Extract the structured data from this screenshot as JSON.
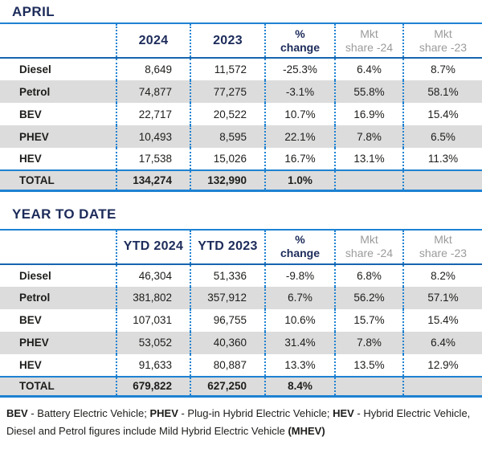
{
  "colors": {
    "navy_text": "#1c2b5a",
    "blue_line": "#1e82d2",
    "header_rule": "#1565af",
    "stripe_gray": "#dcdcdc",
    "muted_header_gray": "#9b9b9b",
    "body_text": "#1d1d1b"
  },
  "april": {
    "title": "APRIL",
    "header": {
      "col_a": "2024",
      "col_b": "2023",
      "change": [
        "%",
        "change"
      ],
      "mkt24": [
        "Mkt",
        "share -24"
      ],
      "mkt23": [
        "Mkt",
        "share -23"
      ]
    },
    "rows": [
      {
        "label": "Diesel",
        "a": "8,649",
        "b": "11,572",
        "change": "-25.3%",
        "mkt24": "6.4%",
        "mkt23": "8.7%"
      },
      {
        "label": "Petrol",
        "a": "74,877",
        "b": "77,275",
        "change": "-3.1%",
        "mkt24": "55.8%",
        "mkt23": "58.1%"
      },
      {
        "label": "BEV",
        "a": "22,717",
        "b": "20,522",
        "change": "10.7%",
        "mkt24": "16.9%",
        "mkt23": "15.4%"
      },
      {
        "label": "PHEV",
        "a": "10,493",
        "b": "8,595",
        "change": "22.1%",
        "mkt24": "7.8%",
        "mkt23": "6.5%"
      },
      {
        "label": "HEV",
        "a": "17,538",
        "b": "15,026",
        "change": "16.7%",
        "mkt24": "13.1%",
        "mkt23": "11.3%"
      }
    ],
    "total": {
      "label": "TOTAL",
      "a": "134,274",
      "b": "132,990",
      "change": "1.0%",
      "mkt24": "",
      "mkt23": ""
    }
  },
  "ytd": {
    "title": "YEAR TO DATE",
    "header": {
      "col_a": "YTD 2024",
      "col_b": "YTD 2023",
      "change": [
        "%",
        "change"
      ],
      "mkt24": [
        "Mkt",
        "share -24"
      ],
      "mkt23": [
        "Mkt",
        "share -23"
      ]
    },
    "rows": [
      {
        "label": "Diesel",
        "a": "46,304",
        "b": "51,336",
        "change": "-9.8%",
        "mkt24": "6.8%",
        "mkt23": "8.2%"
      },
      {
        "label": "Petrol",
        "a": "381,802",
        "b": "357,912",
        "change": "6.7%",
        "mkt24": "56.2%",
        "mkt23": "57.1%"
      },
      {
        "label": "BEV",
        "a": "107,031",
        "b": "96,755",
        "change": "10.6%",
        "mkt24": "15.7%",
        "mkt23": "15.4%"
      },
      {
        "label": "PHEV",
        "a": "53,052",
        "b": "40,360",
        "change": "31.4%",
        "mkt24": "7.8%",
        "mkt23": "6.4%"
      },
      {
        "label": "HEV",
        "a": "91,633",
        "b": "80,887",
        "change": "13.3%",
        "mkt24": "13.5%",
        "mkt23": "12.9%"
      }
    ],
    "total": {
      "label": "TOTAL",
      "a": "679,822",
      "b": "627,250",
      "change": "8.4%",
      "mkt24": "",
      "mkt23": ""
    }
  },
  "footnote": {
    "bev": "BEV",
    "bev_desc": " - Battery Electric Vehicle; ",
    "phev": "PHEV",
    "phev_desc": " - Plug-in Hybrid Electric Vehicle; ",
    "hev": "HEV",
    "hev_desc": " - Hybrid Electric Vehicle,",
    "line2": "Diesel and Petrol figures include Mild Hybrid Electric Vehicle ",
    "mhev": "(MHEV)"
  }
}
